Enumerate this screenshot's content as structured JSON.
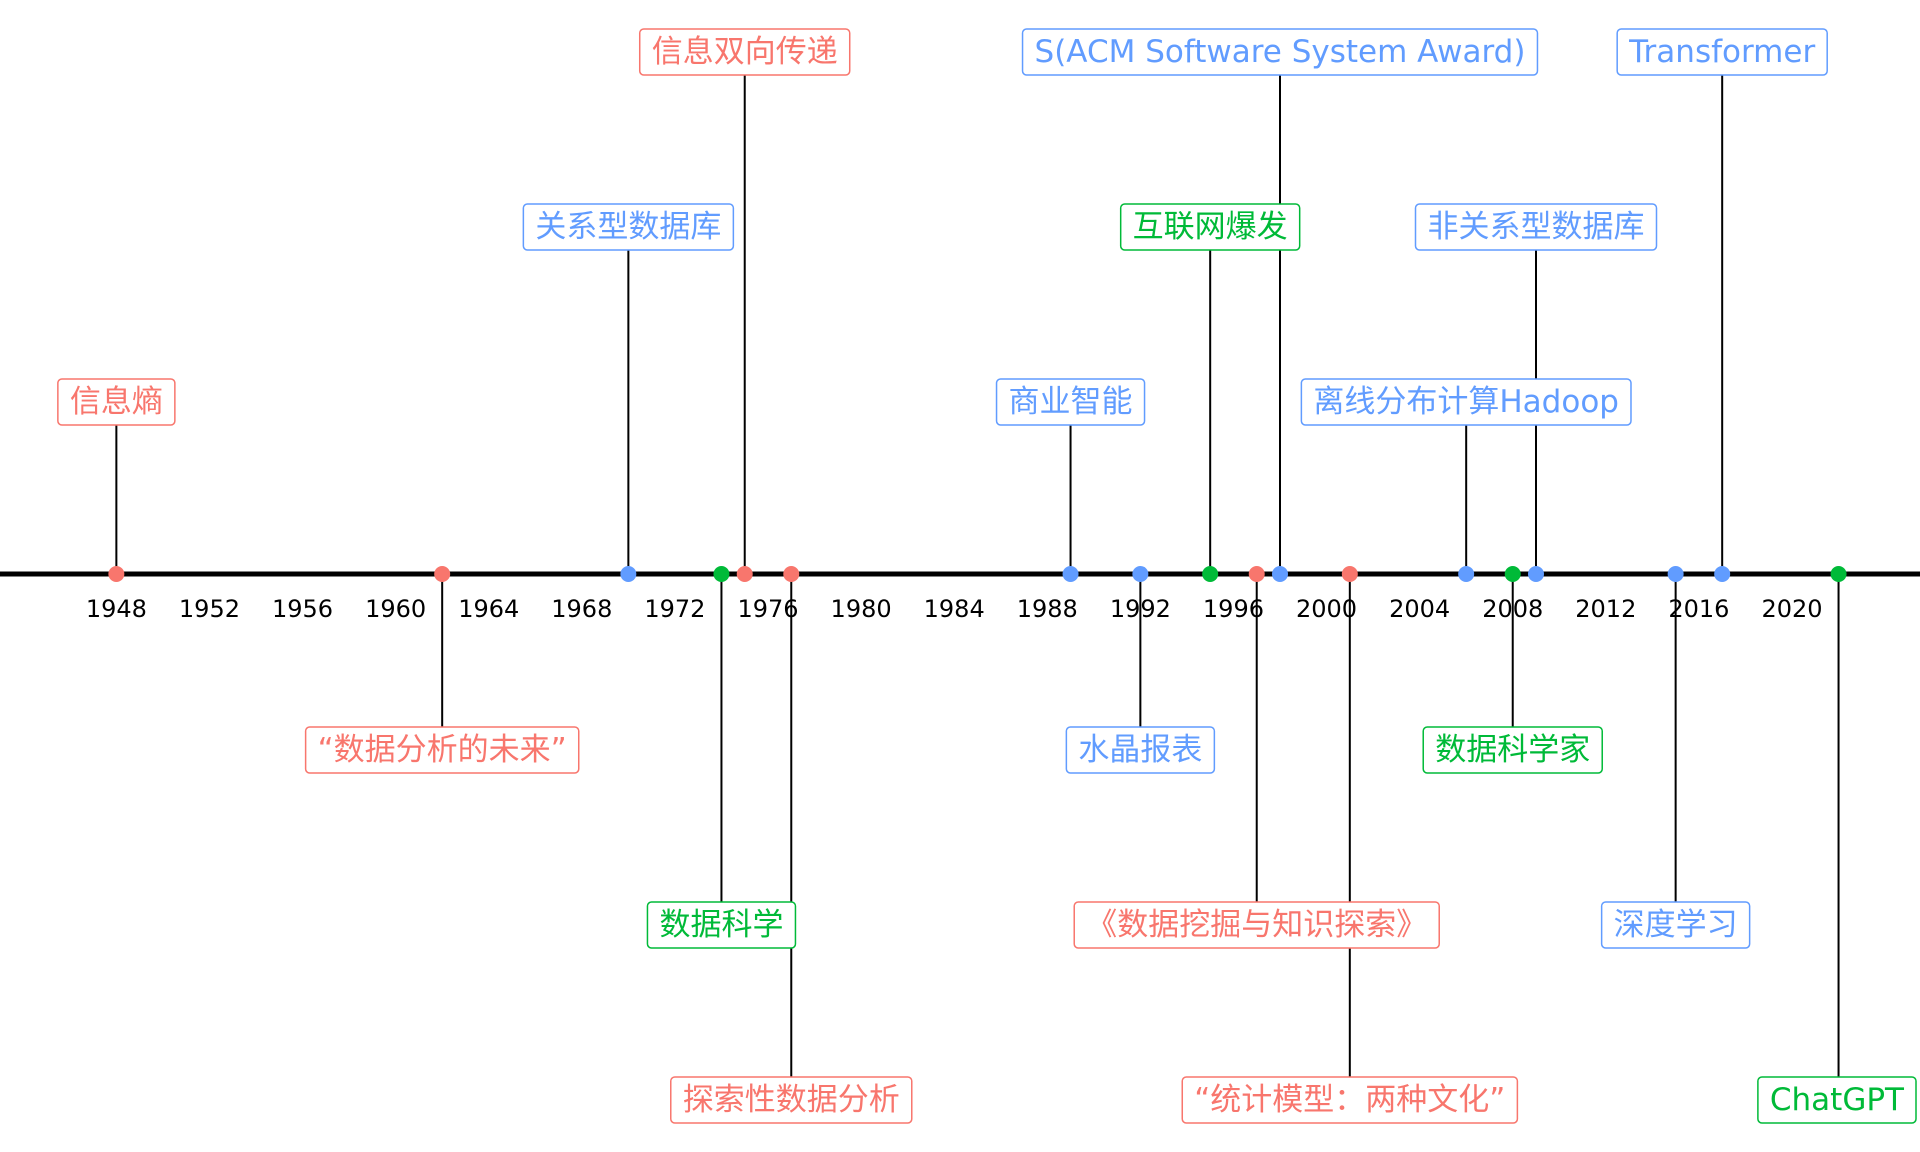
{
  "chart_data": {
    "type": "timeline",
    "x_axis": {
      "min": 1943,
      "max": 2025.5,
      "ticks": [
        1948,
        1952,
        1956,
        1960,
        1964,
        1968,
        1972,
        1976,
        1980,
        1984,
        1988,
        1992,
        1996,
        2000,
        2004,
        2008,
        2012,
        2016,
        2020
      ]
    },
    "grid": false,
    "legend": "none",
    "colors": {
      "red": "#f8766d",
      "blue": "#619cff",
      "green": "#00ba38",
      "axis": "#000000",
      "stem": "#000000"
    },
    "events": [
      {
        "year": 1948.0,
        "label": "信息熵",
        "color": "red",
        "level": 2
      },
      {
        "year": 1962.0,
        "label": "“数据分析的未来”",
        "color": "red",
        "level": -1
      },
      {
        "year": 1970.0,
        "label": "关系型数据库",
        "color": "blue",
        "level": 3
      },
      {
        "year": 1974.0,
        "label": "数据科学",
        "color": "green",
        "level": -2
      },
      {
        "year": 1975.0,
        "label": "信息双向传递",
        "color": "red",
        "level": 4
      },
      {
        "year": 1977.0,
        "label": "探索性数据分析",
        "color": "red",
        "level": -3
      },
      {
        "year": 1989.0,
        "label": "商业智能",
        "color": "blue",
        "level": 2
      },
      {
        "year": 1992.0,
        "label": "水晶报表",
        "color": "blue",
        "level": -1
      },
      {
        "year": 1995.0,
        "label": "互联网爆发",
        "color": "green",
        "level": 3
      },
      {
        "year": 1997.0,
        "label": "《数据挖掘与知识探索》",
        "color": "red",
        "level": -2
      },
      {
        "year": 1998.0,
        "label": "S(ACM Software System Award)",
        "color": "blue",
        "level": 4
      },
      {
        "year": 2001.0,
        "label": "“统计模型：两种文化”",
        "color": "red",
        "level": -3
      },
      {
        "year": 2006.0,
        "label": "离线分布计算Hadoop",
        "color": "blue",
        "level": 2
      },
      {
        "year": 2008.0,
        "label": "数据科学家",
        "color": "green",
        "level": -1
      },
      {
        "year": 2009.0,
        "label": "非关系型数据库",
        "color": "blue",
        "level": 3
      },
      {
        "year": 2015.0,
        "label": "深度学习",
        "color": "blue",
        "level": -2
      },
      {
        "year": 2017.0,
        "label": "Transformer",
        "color": "blue",
        "level": 4
      },
      {
        "year": 2022.0,
        "label": "ChatGPT",
        "color": "green",
        "level": -3
      }
    ]
  }
}
